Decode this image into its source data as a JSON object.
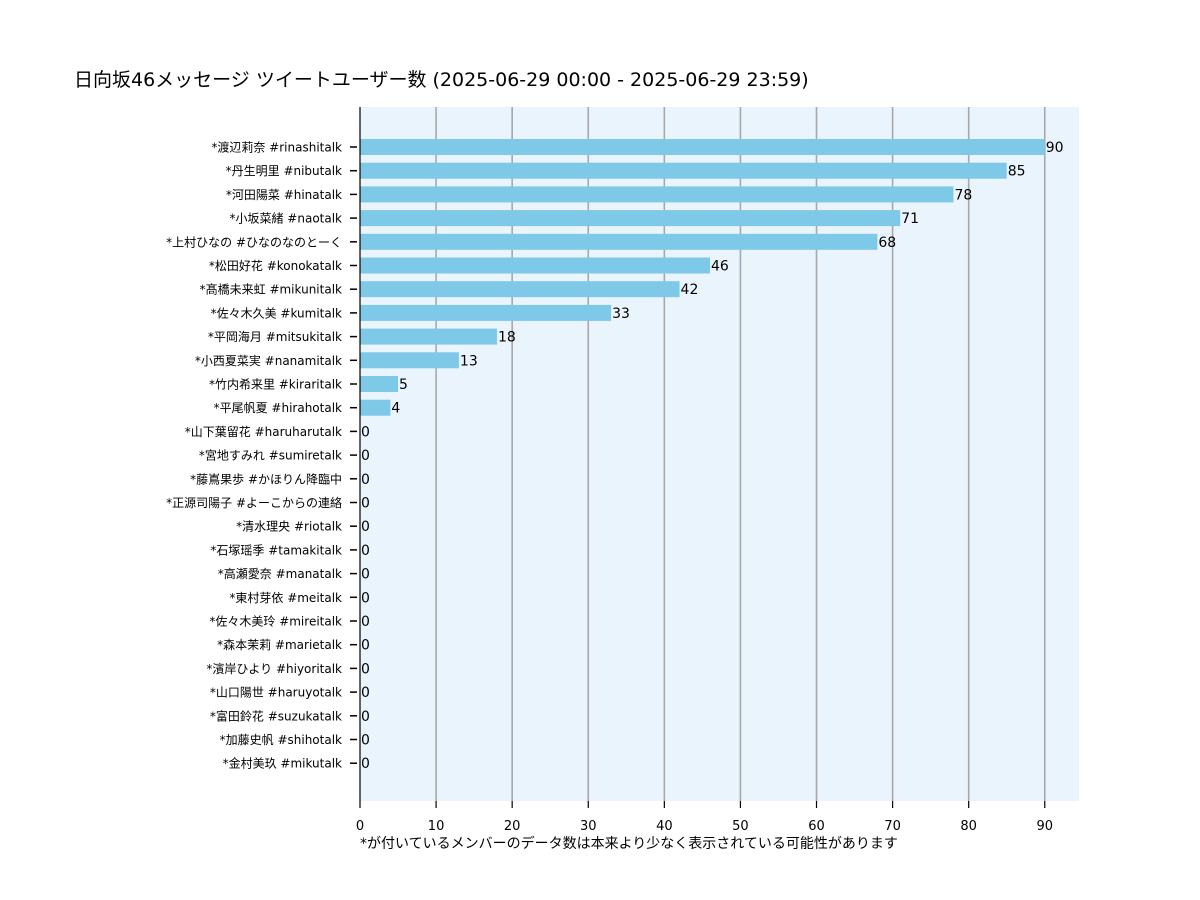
{
  "chart_data": {
    "type": "bar",
    "orientation": "horizontal",
    "title": "日向坂46メッセージ ツイートユーザー数 (2025-06-29 00:00 - 2025-06-29 23:59)",
    "note": "*が付いているメンバーのデータ数は本来より少なく表示されている可能性があります",
    "categories": [
      "*渡辺莉奈 #rinashitalk",
      "*丹生明里 #nibutalk",
      "*河田陽菜 #hinatalk",
      "*小坂菜緒 #naotalk",
      "*上村ひなの #ひなのなのとーく",
      "*松田好花 #konokatalk",
      "*髙橋未来虹 #mikunitalk",
      "*佐々木久美 #kumitalk",
      "*平岡海月 #mitsukitalk",
      "*小西夏菜実 #nanamitalk",
      "*竹内希来里 #kiraritalk",
      "*平尾帆夏 #hirahotalk",
      "*山下葉留花 #haruharutalk",
      "*宮地すみれ #sumiretalk",
      "*藤嶌果歩 #かほりん降臨中",
      "*正源司陽子 #よーこからの連絡",
      "*清水理央 #riotalk",
      "*石塚瑶季 #tamakitalk",
      "*高瀬愛奈 #manatalk",
      "*東村芽依 #meitalk",
      "*佐々木美玲 #mireitalk",
      "*森本茉莉 #marietalk",
      "*濱岸ひより #hiyoritalk",
      "*山口陽世 #haruyotalk",
      "*富田鈴花 #suzukatalk",
      "*加藤史帆 #shihotalk",
      "*金村美玖 #mikutalk"
    ],
    "values": [
      90,
      85,
      78,
      71,
      68,
      46,
      42,
      33,
      18,
      13,
      5,
      4,
      0,
      0,
      0,
      0,
      0,
      0,
      0,
      0,
      0,
      0,
      0,
      0,
      0,
      0,
      0
    ],
    "xlim": [
      0,
      94.5
    ],
    "xticks": [
      0,
      10,
      20,
      30,
      40,
      50,
      60,
      70,
      80,
      90
    ],
    "grid": "vertical",
    "colors": {
      "bar": "#7ec8e8",
      "plot_background": "#eaf4fd",
      "grid": "#a8a8a8",
      "text": "#000000"
    }
  }
}
